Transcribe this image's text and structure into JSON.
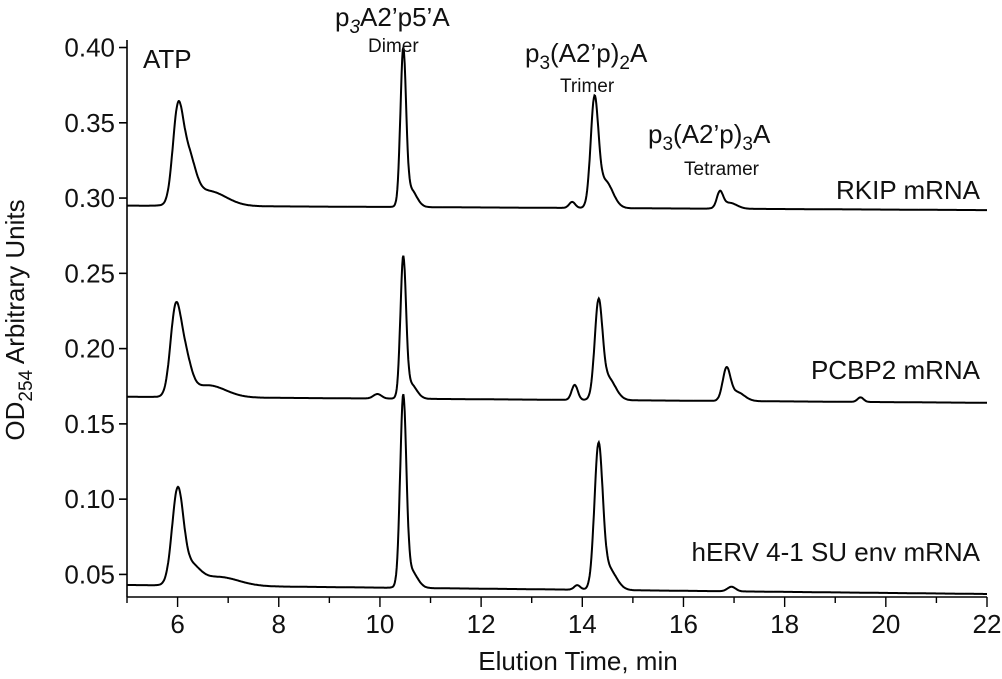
{
  "chart_data": {
    "type": "line",
    "xlabel": "Elution Time, min",
    "ylabel": {
      "main": "OD",
      "sub": "254",
      "rest": " Arbitrary Units"
    },
    "xlim": [
      5,
      22
    ],
    "ylim": [
      0.035,
      0.405
    ],
    "xticks": [
      6,
      8,
      10,
      12,
      14,
      16,
      18,
      20,
      22
    ],
    "yticks": [
      0.05,
      0.1,
      0.15,
      0.2,
      0.25,
      0.3,
      0.35,
      0.4
    ],
    "ytick_labels": [
      "0.05",
      "0.10",
      "0.15",
      "0.20",
      "0.25",
      "0.30",
      "0.35",
      "0.40"
    ],
    "grid": false,
    "line_color": "#000000",
    "series": [
      {
        "name": "RKIP mRNA",
        "baseline_start": 0.295,
        "baseline_end": 0.292,
        "peaks": [
          {
            "x": 6.0,
            "h": 0.055,
            "w": 0.1
          },
          {
            "x": 6.2,
            "h": 0.03,
            "w": 0.14
          },
          {
            "x": 6.6,
            "h": 0.01,
            "w": 0.35
          },
          {
            "x": 10.46,
            "h": 0.1,
            "w": 0.055
          },
          {
            "x": 10.6,
            "h": 0.012,
            "w": 0.12
          },
          {
            "x": 13.8,
            "h": 0.004,
            "w": 0.06
          },
          {
            "x": 14.24,
            "h": 0.068,
            "w": 0.075
          },
          {
            "x": 14.45,
            "h": 0.018,
            "w": 0.15
          },
          {
            "x": 16.72,
            "h": 0.01,
            "w": 0.06
          },
          {
            "x": 16.9,
            "h": 0.004,
            "w": 0.15
          }
        ],
        "label": "RKIP mRNA"
      },
      {
        "name": "PCBP2 mRNA",
        "baseline_start": 0.168,
        "baseline_end": 0.164,
        "peaks": [
          {
            "x": 5.95,
            "h": 0.048,
            "w": 0.1
          },
          {
            "x": 6.12,
            "h": 0.028,
            "w": 0.13
          },
          {
            "x": 6.6,
            "h": 0.008,
            "w": 0.35
          },
          {
            "x": 9.95,
            "h": 0.003,
            "w": 0.08
          },
          {
            "x": 10.46,
            "h": 0.09,
            "w": 0.055
          },
          {
            "x": 10.6,
            "h": 0.01,
            "w": 0.12
          },
          {
            "x": 13.85,
            "h": 0.01,
            "w": 0.06
          },
          {
            "x": 14.32,
            "h": 0.06,
            "w": 0.075
          },
          {
            "x": 14.5,
            "h": 0.015,
            "w": 0.15
          },
          {
            "x": 16.85,
            "h": 0.02,
            "w": 0.075
          },
          {
            "x": 17.05,
            "h": 0.006,
            "w": 0.15
          },
          {
            "x": 19.5,
            "h": 0.003,
            "w": 0.06
          }
        ],
        "label": "PCBP2 mRNA"
      },
      {
        "name": "hERV 4-1 SU env mRNA",
        "baseline_start": 0.043,
        "baseline_end": 0.037,
        "peaks": [
          {
            "x": 6.0,
            "h": 0.06,
            "w": 0.11
          },
          {
            "x": 6.25,
            "h": 0.012,
            "w": 0.18
          },
          {
            "x": 6.8,
            "h": 0.006,
            "w": 0.4
          },
          {
            "x": 10.46,
            "h": 0.122,
            "w": 0.06
          },
          {
            "x": 10.6,
            "h": 0.012,
            "w": 0.13
          },
          {
            "x": 13.9,
            "h": 0.003,
            "w": 0.06
          },
          {
            "x": 14.32,
            "h": 0.09,
            "w": 0.08
          },
          {
            "x": 14.5,
            "h": 0.015,
            "w": 0.16
          },
          {
            "x": 16.95,
            "h": 0.003,
            "w": 0.08
          }
        ],
        "label": "hERV 4-1 SU env mRNA"
      }
    ],
    "annotations": [
      {
        "id": "atp",
        "text": "ATP"
      },
      {
        "id": "dimer",
        "formula": [
          "p",
          "3",
          "A2’p5’A"
        ],
        "name": "Dimer"
      },
      {
        "id": "trimer",
        "formula": [
          "p",
          "3",
          "(A2’p)",
          "2",
          "A"
        ],
        "name": "Trimer"
      },
      {
        "id": "tetramer",
        "formula": [
          "p",
          "3",
          "(A2’p)",
          "3",
          "A"
        ],
        "name": "Tetramer"
      }
    ]
  }
}
